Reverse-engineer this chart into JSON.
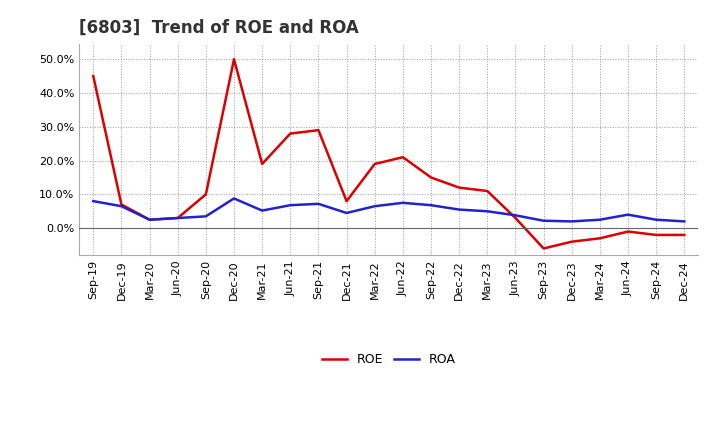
{
  "title": "[6803]  Trend of ROE and ROA",
  "x_labels": [
    "Sep-19",
    "Dec-19",
    "Mar-20",
    "Jun-20",
    "Sep-20",
    "Dec-20",
    "Mar-21",
    "Jun-21",
    "Sep-21",
    "Dec-21",
    "Mar-22",
    "Jun-22",
    "Sep-22",
    "Dec-22",
    "Mar-23",
    "Jun-23",
    "Sep-23",
    "Dec-23",
    "Mar-24",
    "Jun-24",
    "Sep-24",
    "Dec-24"
  ],
  "roe": [
    0.45,
    0.07,
    0.025,
    0.03,
    0.1,
    0.5,
    0.19,
    0.28,
    0.29,
    0.08,
    0.19,
    0.21,
    0.15,
    0.12,
    0.11,
    0.03,
    -0.06,
    -0.04,
    -0.03,
    -0.01,
    -0.02,
    -0.02
  ],
  "roa": [
    0.08,
    0.065,
    0.025,
    0.03,
    0.035,
    0.088,
    0.052,
    0.068,
    0.072,
    0.045,
    0.065,
    0.075,
    0.068,
    0.055,
    0.05,
    0.038,
    0.022,
    0.02,
    0.025,
    0.04,
    0.025,
    0.02
  ],
  "roe_color": "#dd0000",
  "roa_color": "#2222cc",
  "background_color": "#ffffff",
  "grid_color": "#999999",
  "ylim": [
    -0.08,
    0.545
  ],
  "yticks": [
    0.0,
    0.1,
    0.2,
    0.3,
    0.4,
    0.5
  ],
  "line_width": 1.8,
  "title_fontsize": 12,
  "tick_fontsize": 8
}
